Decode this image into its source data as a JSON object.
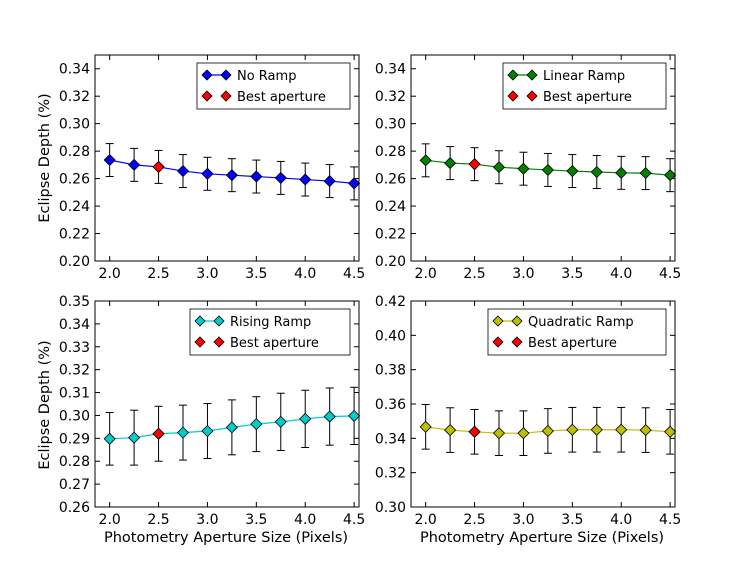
{
  "figure": {
    "shared_ylabel": "Eclipse Depth (%)",
    "shared_xlabel": "Photometry Aperture Size (Pixels)"
  },
  "chart_data": [
    {
      "type": "line",
      "panel": "top-left",
      "series": [
        {
          "name": "No Ramp",
          "color": "#0000ff",
          "x": [
            2.0,
            2.25,
            2.5,
            2.75,
            3.0,
            3.25,
            3.5,
            3.75,
            4.0,
            4.25,
            4.5
          ],
          "values": [
            0.2735,
            0.27,
            0.2685,
            0.2655,
            0.2635,
            0.2625,
            0.2615,
            0.2605,
            0.2593,
            0.2582,
            0.2565
          ],
          "errors": [
            0.012,
            0.012,
            0.012,
            0.012,
            0.012,
            0.012,
            0.012,
            0.012,
            0.012,
            0.012,
            0.012
          ]
        },
        {
          "name": "Best aperture",
          "color": "#ff0000",
          "x": [
            2.5
          ],
          "values": [
            0.2685
          ]
        }
      ],
      "xlim": [
        1.85,
        4.55
      ],
      "ylim": [
        0.2,
        0.35
      ],
      "xticks": [
        "2.0",
        "2.5",
        "3.0",
        "3.5",
        "4.0",
        "4.5"
      ],
      "yticks": [
        "0.20",
        "0.22",
        "0.24",
        "0.26",
        "0.28",
        "0.30",
        "0.32",
        "0.34"
      ],
      "ytick_values": [
        0.2,
        0.22,
        0.24,
        0.26,
        0.28,
        0.3,
        0.32,
        0.34
      ],
      "xlabel": "",
      "ylabel": "Eclipse Depth (%)",
      "legend": "top-right"
    },
    {
      "type": "line",
      "panel": "top-right",
      "series": [
        {
          "name": "Linear Ramp",
          "color": "#008000",
          "x": [
            2.0,
            2.25,
            2.5,
            2.75,
            3.0,
            3.25,
            3.5,
            3.75,
            4.0,
            4.25,
            4.5
          ],
          "values": [
            0.2733,
            0.2713,
            0.2705,
            0.2683,
            0.2672,
            0.2663,
            0.2655,
            0.2648,
            0.2642,
            0.264,
            0.2625
          ],
          "errors": [
            0.012,
            0.012,
            0.012,
            0.012,
            0.012,
            0.012,
            0.012,
            0.012,
            0.012,
            0.012,
            0.012
          ]
        },
        {
          "name": "Best aperture",
          "color": "#ff0000",
          "x": [
            2.5
          ],
          "values": [
            0.2705
          ]
        }
      ],
      "xlim": [
        1.85,
        4.55
      ],
      "ylim": [
        0.2,
        0.35
      ],
      "xticks": [
        "2.0",
        "2.5",
        "3.0",
        "3.5",
        "4.0",
        "4.5"
      ],
      "yticks": [
        "0.20",
        "0.22",
        "0.24",
        "0.26",
        "0.28",
        "0.30",
        "0.32",
        "0.34"
      ],
      "ytick_values": [
        0.2,
        0.22,
        0.24,
        0.26,
        0.28,
        0.3,
        0.32,
        0.34
      ],
      "xlabel": "",
      "ylabel": "",
      "legend": "top-right"
    },
    {
      "type": "line",
      "panel": "bottom-left",
      "series": [
        {
          "name": "Rising Ramp",
          "color": "#00cccc",
          "x": [
            2.0,
            2.25,
            2.5,
            2.75,
            3.0,
            3.25,
            3.5,
            3.75,
            4.0,
            4.25,
            4.5
          ],
          "values": [
            0.2898,
            0.2903,
            0.292,
            0.2925,
            0.2932,
            0.2948,
            0.2962,
            0.2972,
            0.2985,
            0.2995,
            0.2998
          ],
          "errors": [
            0.0115,
            0.012,
            0.012,
            0.012,
            0.012,
            0.012,
            0.012,
            0.0125,
            0.0125,
            0.0125,
            0.0125
          ]
        },
        {
          "name": "Best aperture",
          "color": "#ff0000",
          "x": [
            2.5
          ],
          "values": [
            0.292
          ]
        }
      ],
      "xlim": [
        1.85,
        4.55
      ],
      "ylim": [
        0.26,
        0.35
      ],
      "xticks": [
        "2.0",
        "2.5",
        "3.0",
        "3.5",
        "4.0",
        "4.5"
      ],
      "yticks": [
        "0.26",
        "0.27",
        "0.28",
        "0.29",
        "0.30",
        "0.31",
        "0.32",
        "0.33",
        "0.34",
        "0.35"
      ],
      "ytick_values": [
        0.26,
        0.27,
        0.28,
        0.29,
        0.3,
        0.31,
        0.32,
        0.33,
        0.34,
        0.35
      ],
      "xlabel": "Photometry Aperture Size (Pixels)",
      "ylabel": "Eclipse Depth (%)",
      "legend": "top-right"
    },
    {
      "type": "line",
      "panel": "bottom-right",
      "series": [
        {
          "name": "Quadratic Ramp",
          "color": "#bfbf00",
          "x": [
            2.0,
            2.25,
            2.5,
            2.75,
            3.0,
            3.25,
            3.5,
            3.75,
            4.0,
            4.25,
            4.5
          ],
          "values": [
            0.3467,
            0.3448,
            0.3438,
            0.343,
            0.343,
            0.3443,
            0.345,
            0.345,
            0.345,
            0.3448,
            0.3438
          ],
          "errors": [
            0.013,
            0.013,
            0.013,
            0.013,
            0.013,
            0.013,
            0.013,
            0.013,
            0.013,
            0.013,
            0.013
          ]
        },
        {
          "name": "Best aperture",
          "color": "#ff0000",
          "x": [
            2.5
          ],
          "values": [
            0.3438
          ]
        }
      ],
      "xlim": [
        1.85,
        4.55
      ],
      "ylim": [
        0.3,
        0.42
      ],
      "xticks": [
        "2.0",
        "2.5",
        "3.0",
        "3.5",
        "4.0",
        "4.5"
      ],
      "yticks": [
        "0.30",
        "0.32",
        "0.34",
        "0.36",
        "0.38",
        "0.40",
        "0.42"
      ],
      "ytick_values": [
        0.3,
        0.32,
        0.34,
        0.36,
        0.38,
        0.4,
        0.42
      ],
      "xlabel": "Photometry Aperture Size (Pixels)",
      "ylabel": "",
      "legend": "top-right"
    }
  ]
}
